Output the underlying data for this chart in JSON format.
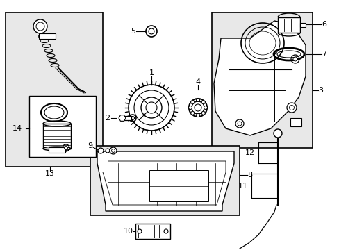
{
  "bg_color": "#ffffff",
  "box_bg": "#e8e8e8",
  "figsize": [
    4.89,
    3.6
  ],
  "dpi": 100
}
